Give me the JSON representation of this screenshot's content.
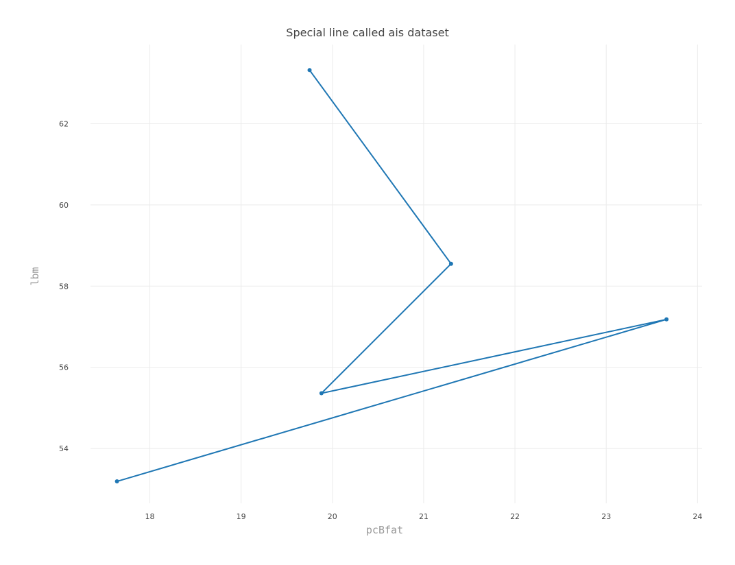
{
  "chart_data": {
    "type": "line",
    "title": "Special line called ais dataset",
    "xlabel": "pcBfat",
    "ylabel": "lbm",
    "xlim": [
      17.35,
      24.05
    ],
    "ylim": [
      52.65,
      63.95
    ],
    "xticks": [
      18,
      19,
      20,
      21,
      22,
      23,
      24
    ],
    "yticks": [
      54,
      56,
      58,
      60,
      62
    ],
    "grid": true,
    "legend": "none",
    "series": [
      {
        "color": "#1f77b4",
        "x": [
          19.75,
          21.3,
          19.88,
          23.66,
          17.64
        ],
        "y": [
          63.32,
          58.55,
          55.36,
          57.18,
          53.19
        ]
      }
    ]
  }
}
